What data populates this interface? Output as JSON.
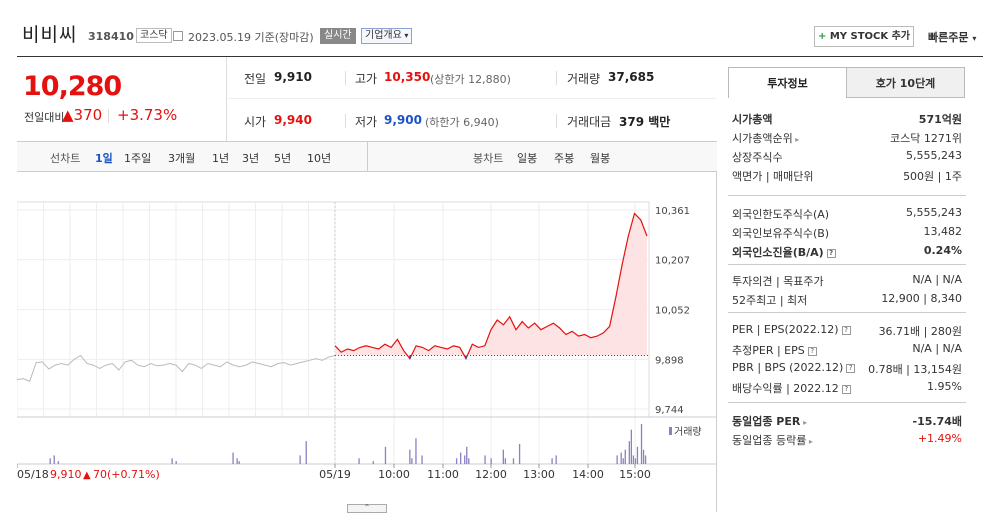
{
  "header": {
    "stock_name": "비비씨",
    "stock_code": "318410",
    "market": "코스닥",
    "date_text": "2023.05.19 기준(장마감)",
    "realtime_label": "실시간",
    "overview_label": "기업개요",
    "mystock_label": "MY STOCK 추가",
    "quick_order_label": "빠른주문"
  },
  "price": {
    "current": "10,280",
    "diff_label": "전일대비",
    "diff_value": "370",
    "diff_pct": "+3.73%"
  },
  "info": {
    "prev_label": "전일",
    "prev_value": "9,910",
    "high_label": "고가",
    "high_value": "10,350",
    "upper_limit": "(상한가 12,880)",
    "volume_label": "거래량",
    "volume_value": "37,685",
    "open_label": "시가",
    "open_value": "9,940",
    "low_label": "저가",
    "low_value": "9,900",
    "lower_limit": "(하한가 6,940)",
    "amount_label": "거래대금",
    "amount_value": "379 백만"
  },
  "chart_tabs": {
    "line_title": "선차트",
    "periods": [
      "1일",
      "1주일",
      "3개월",
      "1년",
      "3년",
      "5년",
      "10년"
    ],
    "candle_title": "봉차트",
    "candles": [
      "일봉",
      "주봉",
      "월봉"
    ]
  },
  "chart_data": {
    "type": "line",
    "y_ticks": [
      "10,361",
      "10,207",
      "10,052",
      "9,898",
      "9,744"
    ],
    "ylim": [
      9744,
      10361
    ],
    "x_ticks": [
      "05/19",
      "10:00",
      "11:00",
      "12:00",
      "13:00",
      "14:00",
      "15:00"
    ],
    "prev_day_label": "05/18",
    "prev_day_close": "9,910",
    "prev_day_change": "70",
    "prev_day_pct": "(+0.71%)",
    "volume_legend": "거래량",
    "colors": {
      "today_line": "#e4110e",
      "today_fill": "#fde3e3",
      "prev_line": "#bbbbbb",
      "volume_bar": "#8c7fc2",
      "below_line": "#1a52c9"
    },
    "series": [
      {
        "x": [
          0,
          2,
          4,
          6,
          8,
          10,
          12,
          14,
          16,
          18,
          20,
          22,
          24,
          26,
          28,
          30,
          32,
          34,
          36,
          38,
          40,
          42,
          44,
          46,
          48,
          50,
          52,
          54,
          56,
          58,
          60,
          62,
          64,
          66,
          68,
          70,
          72,
          74,
          76,
          78,
          80,
          82,
          84,
          86,
          88,
          90,
          92,
          94,
          96,
          98,
          100
        ],
        "values": [
          9835,
          9838,
          9830,
          9888,
          9890,
          9868,
          9880,
          9885,
          9880,
          9898,
          9910,
          9885,
          9880,
          9870,
          9880,
          9885,
          9865,
          9890,
          9895,
          9880,
          9875,
          9885,
          9878,
          9880,
          9885,
          9880,
          9860,
          9885,
          9880,
          9870,
          9885,
          9880,
          9875,
          9890,
          9880,
          9875,
          9880,
          9890,
          9885,
          9880,
          9875,
          9885,
          9888,
          9880,
          9885,
          9890,
          9895,
          9900,
          9895,
          9905,
          9910
        ]
      },
      {
        "x": [
          0,
          2,
          4,
          6,
          8,
          10,
          12,
          14,
          16,
          18,
          20,
          22,
          24,
          26,
          28,
          30,
          32,
          34,
          36,
          38,
          40,
          42,
          44,
          46,
          48,
          50,
          52,
          54,
          56,
          58,
          60,
          62,
          64,
          66,
          68,
          70,
          72,
          74,
          76,
          78,
          80,
          82,
          84,
          86,
          88,
          90,
          92,
          94,
          96,
          98,
          100
        ],
        "values": [
          9940,
          9920,
          9930,
          9925,
          9935,
          9940,
          9935,
          9930,
          9945,
          9935,
          9960,
          9925,
          9900,
          9940,
          9935,
          9925,
          9940,
          9935,
          9930,
          9940,
          9935,
          9900,
          9945,
          9935,
          9940,
          9990,
          10020,
          10005,
          10030,
          9990,
          10015,
          9995,
          10010,
          9990,
          10000,
          10010,
          9995,
          9975,
          9985,
          9970,
          9975,
          9965,
          9970,
          9980,
          10000,
          10090,
          10190,
          10280,
          10350,
          10330,
          10280
        ]
      }
    ],
    "volume": [
      0,
      0,
      0,
      0,
      0,
      0,
      0,
      0,
      0,
      0,
      0,
      0,
      0,
      0,
      0,
      0,
      2,
      0,
      3,
      0,
      1,
      0,
      0,
      0,
      0,
      0,
      0,
      0,
      0,
      0,
      0,
      0,
      0,
      0,
      0,
      0,
      0,
      0,
      0,
      0,
      0,
      0,
      0,
      0,
      0,
      0,
      0,
      0,
      0,
      0,
      0,
      0,
      0,
      0,
      0,
      0,
      0,
      0,
      0,
      0,
      0,
      0,
      0,
      0,
      0,
      0,
      0,
      0,
      0,
      0,
      0,
      0,
      0,
      0,
      0,
      0,
      2,
      0,
      1,
      0,
      0,
      0,
      0,
      0,
      0,
      0,
      0,
      0,
      0,
      0,
      0,
      0,
      0,
      0,
      0,
      0,
      0,
      0,
      0,
      0,
      0,
      0,
      0,
      0,
      0,
      0,
      4,
      0,
      2,
      1,
      0,
      0,
      0,
      0,
      0,
      0,
      0,
      0,
      0,
      0,
      0,
      0,
      0,
      0,
      0,
      0,
      0,
      0,
      0,
      0,
      0,
      0,
      0,
      0,
      0,
      0,
      0,
      0,
      0,
      3,
      0,
      0,
      8,
      0,
      0,
      0,
      0,
      0,
      0,
      0,
      0,
      0,
      0,
      0,
      0,
      0,
      0,
      0,
      0,
      0,
      0,
      0,
      0,
      0,
      0,
      0,
      0,
      0,
      2,
      0,
      0,
      0,
      0,
      0,
      0,
      1,
      0,
      0,
      0,
      0,
      0,
      6,
      0,
      0,
      0,
      0,
      0,
      0,
      0,
      0,
      0,
      0,
      0,
      5,
      2,
      0,
      9,
      0,
      0,
      3,
      0,
      0,
      0,
      0,
      0,
      0,
      0,
      0,
      0,
      0,
      0,
      0,
      0,
      0,
      0,
      0,
      2,
      0,
      4,
      0,
      3,
      6,
      2,
      0,
      0,
      0,
      0,
      0,
      0,
      0,
      3,
      0,
      0,
      2,
      0,
      0,
      0,
      0,
      0,
      5,
      2,
      0,
      0,
      0,
      2,
      0,
      0,
      7,
      0,
      0,
      0,
      0,
      0,
      0,
      0,
      0,
      0,
      0,
      0,
      0,
      0,
      0,
      0,
      2,
      0,
      3,
      0,
      0,
      0,
      0,
      0,
      0,
      0,
      0,
      0,
      0,
      0,
      0,
      0,
      0,
      0,
      0,
      0,
      0,
      0,
      0,
      0,
      0,
      0,
      0,
      0,
      0,
      0,
      0,
      0,
      3,
      0,
      4,
      2,
      5,
      0,
      8,
      12,
      3,
      2,
      6,
      0,
      14,
      5,
      3,
      0
    ]
  },
  "right_panel": {
    "tab_invest": "투자정보",
    "tab_hoga": "호가 10단계",
    "rows": [
      {
        "k": "시가총액",
        "v": "571억원",
        "bold": true
      },
      {
        "k": "시가총액순위",
        "v": "코스닥 1271위"
      },
      {
        "k": "상장주식수",
        "v": "5,555,243"
      },
      {
        "k": "액면가 | 매매단위",
        "v": "500원 | 1주"
      },
      {
        "k": "외국인한도주식수(A)",
        "v": "5,555,243"
      },
      {
        "k": "외국인보유주식수(B)",
        "v": "13,482"
      },
      {
        "k": "외국인소진율(B/A)",
        "v": "0.24%",
        "bold": true
      },
      {
        "k": "투자의견 | 목표주가",
        "v": "N/A | N/A"
      },
      {
        "k": "52주최고 | 최저",
        "v": "12,900 | 8,340"
      },
      {
        "k": "PER | EPS(2022.12)",
        "v": "36.71배 | 280원"
      },
      {
        "k": "추정PER | EPS",
        "v": "N/A | N/A"
      },
      {
        "k": "PBR | BPS (2022.12)",
        "v": "0.78배 | 13,154원"
      },
      {
        "k": "배당수익률 | 2022.12",
        "v": "1.95%"
      },
      {
        "k": "동일업종 PER",
        "v": "-15.74배",
        "bold": true
      },
      {
        "k": "동일업종 등락률",
        "v": "+1.49%",
        "red": true
      }
    ]
  }
}
